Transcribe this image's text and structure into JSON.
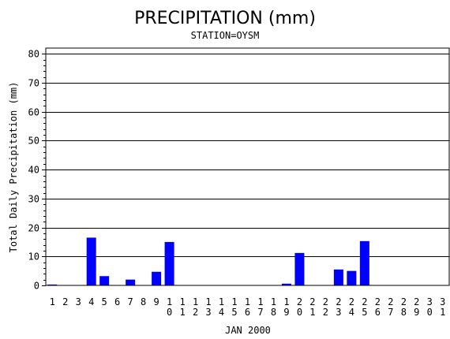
{
  "chart_data": {
    "type": "bar",
    "title": "PRECIPITATION (mm)",
    "subtitle": "STATION=OYSM",
    "xlabel": "JAN 2000",
    "ylabel": "Total Daily Precipitation (mm)",
    "ylim": [
      0,
      82
    ],
    "yticks": [
      0,
      10,
      20,
      30,
      40,
      50,
      60,
      70,
      80
    ],
    "grid": true,
    "categories": [
      "1",
      "2",
      "3",
      "4",
      "5",
      "6",
      "7",
      "8",
      "9",
      "10",
      "11",
      "12",
      "13",
      "14",
      "15",
      "16",
      "17",
      "18",
      "19",
      "20",
      "21",
      "22",
      "23",
      "24",
      "25",
      "26",
      "27",
      "28",
      "29",
      "30",
      "31"
    ],
    "values": [
      0.3,
      0,
      0,
      16.5,
      3.2,
      0,
      2.0,
      0,
      4.7,
      15.0,
      0,
      0,
      0,
      0,
      0,
      0,
      0,
      0,
      0.6,
      11.2,
      0,
      0,
      5.5,
      5.0,
      15.3,
      0,
      0,
      0,
      0,
      0,
      0
    ],
    "bar_color": "#0000ff"
  }
}
